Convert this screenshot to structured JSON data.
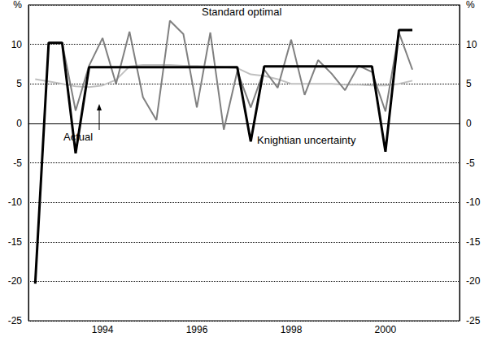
{
  "chart_data": {
    "type": "line",
    "categories": [
      null,
      null,
      null,
      null,
      null,
      "1994",
      null,
      null,
      null,
      null,
      null,
      null,
      "1996",
      null,
      null,
      null,
      null,
      null,
      null,
      "1998",
      null,
      null,
      null,
      null,
      null,
      null,
      "2000",
      null,
      null,
      null,
      null,
      null
    ],
    "series": [
      {
        "name": "Actual",
        "color": "#c0c0c0",
        "values": [
          5.6,
          5.3,
          5.0,
          4.7,
          4.6,
          4.8,
          5.5,
          7.2,
          7.4,
          7.4,
          7.4,
          7.3,
          7.3,
          7.2,
          7.1,
          7.0,
          6.2,
          6.0,
          5.6,
          5.0,
          5.0,
          5.0,
          5.0,
          4.9,
          4.9,
          4.8,
          4.8,
          5.0,
          5.4,
          null,
          null,
          null
        ]
      },
      {
        "name": "Standard optimal",
        "color": "#808080",
        "values": [
          null,
          10.2,
          10.2,
          1.6,
          7.3,
          10.8,
          5.0,
          11.6,
          3.3,
          0.4,
          13.0,
          11.3,
          2.0,
          11.5,
          -0.8,
          6.6,
          2.0,
          6.8,
          4.5,
          10.6,
          3.6,
          8.0,
          6.3,
          4.2,
          7.3,
          6.5,
          1.5,
          11.5,
          6.8,
          null,
          null,
          null
        ]
      },
      {
        "name": "Knightian uncertainty",
        "color": "#000000",
        "values": [
          -20.3,
          10.2,
          10.2,
          -3.8,
          7.1,
          7.1,
          7.1,
          7.1,
          7.1,
          7.1,
          7.1,
          7.1,
          7.1,
          7.1,
          7.1,
          7.1,
          -2.3,
          7.2,
          7.2,
          7.2,
          7.2,
          7.2,
          7.2,
          7.2,
          7.2,
          7.2,
          -3.6,
          11.8,
          11.8,
          null,
          null,
          null
        ]
      }
    ],
    "annotations": [
      "Standard optimal",
      "Actual",
      "Knightian uncertainty"
    ],
    "ylim": [
      -25,
      15
    ],
    "yticks": [
      -25,
      -20,
      -15,
      -10,
      -5,
      0,
      5,
      10,
      {
        "value": 15,
        "label": "%"
      }
    ],
    "y2lim": [
      -25,
      15
    ],
    "y2ticks": [
      -25,
      -20,
      -15,
      -10,
      -5,
      0,
      5,
      10,
      {
        "value": 15,
        "label": "%"
      }
    ],
    "grid": true
  }
}
